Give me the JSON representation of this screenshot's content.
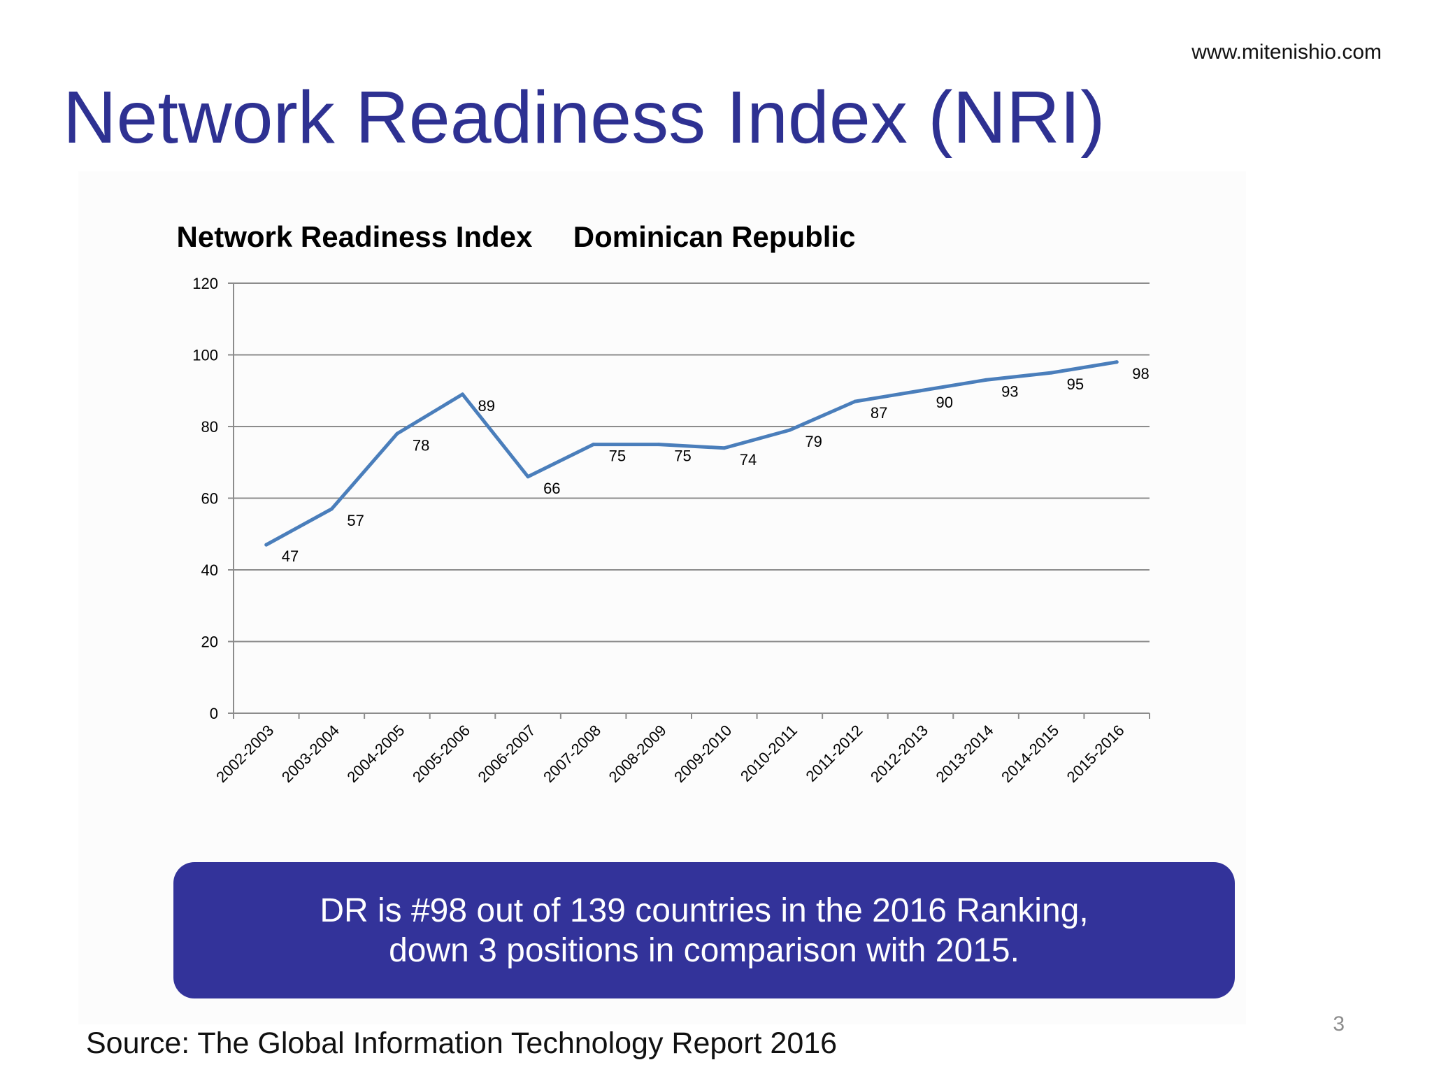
{
  "website": "www.mitenishio.com",
  "slide_title": "Network Readiness Index (NRI)",
  "callout": {
    "line1": "DR is #98 out of 139 countries in the 2016 Ranking,",
    "line2": "down 3 positions in comparison with 2015."
  },
  "source": "Source:  The Global Information Technology Report 2016",
  "page_number": "3",
  "colors": {
    "title": "#2e3192",
    "series": "#4a7ebb",
    "callout_bg": "#33339a",
    "gridline": "#8c8c8c"
  },
  "chart_data": {
    "type": "line",
    "title": "Network Readiness Index     Dominican Republic",
    "categories": [
      "2002-2003",
      "2003-2004",
      "2004-2005",
      "2005-2006",
      "2006-2007",
      "2007-2008",
      "2008-2009",
      "2009-2010",
      "2010-2011",
      "2011-2012",
      "2012-2013",
      "2013-2014",
      "2014-2015",
      "2015-2016"
    ],
    "series": [
      {
        "values": [
          47,
          57,
          78,
          89,
          66,
          75,
          75,
          74,
          79,
          87,
          90,
          93,
          95,
          98
        ]
      }
    ],
    "data_labels": [
      "47",
      "57",
      "78",
      "89",
      "66",
      "75",
      "75",
      "74",
      "79",
      "87",
      "90",
      "93",
      "95",
      "98"
    ],
    "ylim": [
      0,
      120
    ],
    "yticks": [
      "0",
      "20",
      "40",
      "60",
      "80",
      "100",
      "120"
    ],
    "xlabel": "",
    "ylabel": "",
    "grid": true,
    "legend": "none"
  }
}
